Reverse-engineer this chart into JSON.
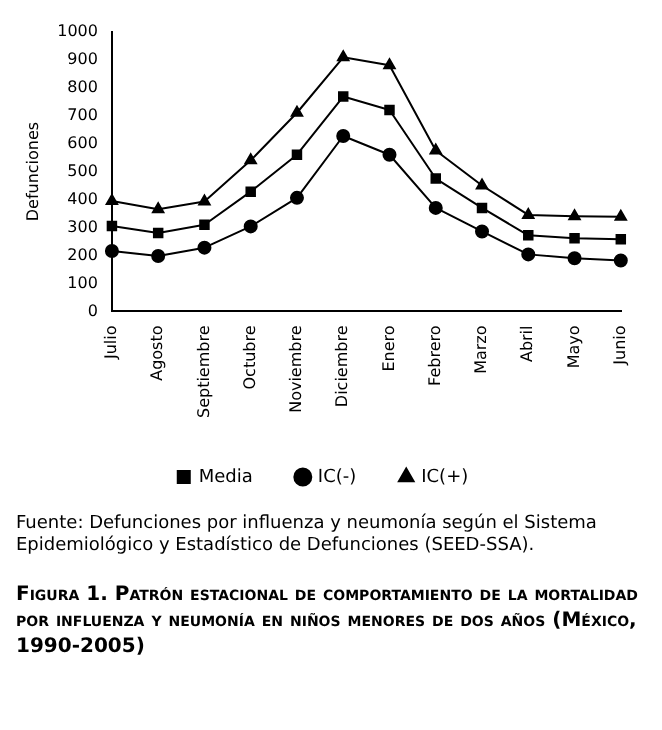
{
  "chart_data": {
    "type": "line",
    "title": "Figura 1. Patrón estacional de comportamiento de la mortalidad por influenza y neumonía en niños menores de dos años (México, 1990-2005)",
    "ylabel": "Defunciones",
    "categories": [
      "Julio",
      "Agosto",
      "Septiembre",
      "Octubre",
      "Noviembre",
      "Diciembre",
      "Enero",
      "Febrero",
      "Marzo",
      "Abril",
      "Mayo",
      "Junio"
    ],
    "series": [
      {
        "name": "Media",
        "color": "#000000",
        "marker": "square",
        "values": [
          305,
          280,
          310,
          428,
          560,
          768,
          720,
          475,
          370,
          272,
          262,
          258
        ]
      },
      {
        "name": "IC(-)",
        "color": "#000000",
        "marker": "circle",
        "values": [
          216,
          198,
          228,
          304,
          406,
          627,
          560,
          370,
          286,
          204,
          190,
          182
        ]
      },
      {
        "name": "IC(+)",
        "color": "#000000",
        "marker": "triangle",
        "values": [
          395,
          365,
          393,
          540,
          710,
          908,
          880,
          575,
          450,
          345,
          340,
          338
        ]
      }
    ],
    "ylim": [
      0,
      1000
    ],
    "yticks": [
      0,
      100,
      200,
      300,
      400,
      500,
      600,
      700,
      800,
      900,
      1000
    ],
    "grid": false,
    "legend": "bottom",
    "line_style": "solid",
    "annotations": [
      "Fuente: Defunciones por influenza y neumonía según el Sistema Epidemiológico y Estadístico de Defunciones (SEED-SSA)."
    ]
  }
}
